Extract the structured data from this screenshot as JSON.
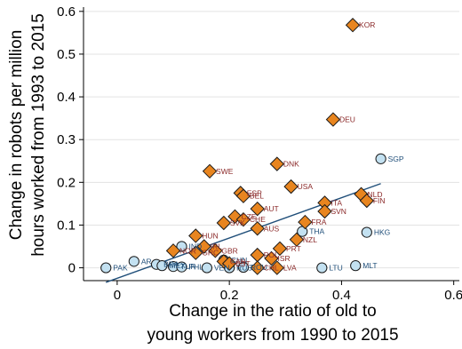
{
  "chart_data": {
    "type": "scatter",
    "xlabel": [
      "Change in the ratio of old to",
      "young workers from 1990 to 2015"
    ],
    "ylabel": [
      "Change in robots per million",
      "hours worked from 1993 to 2015"
    ],
    "xlim": [
      -0.06,
      0.61
    ],
    "ylim": [
      -0.03,
      0.61
    ],
    "xticks": [
      0,
      0.2,
      0.4,
      0.6
    ],
    "xtick_labels": [
      "0",
      "0.2",
      "0.4",
      "0.6"
    ],
    "yticks": [
      0,
      0.1,
      0.2,
      0.3,
      0.4,
      0.5,
      0.6
    ],
    "ytick_labels": [
      "0",
      "0.1",
      "0.2",
      "0.3",
      "0.4",
      "0.5",
      "0.6"
    ],
    "grid": "horizontal",
    "colors": {
      "diamond_fill": "#e8851f",
      "diamond_label": "#8b2a2a",
      "circle_fill": "#c3e1f1",
      "circle_label": "#1f4e79",
      "fit_line": "#1f4e79"
    },
    "fit_line": {
      "x": [
        -0.02,
        0.47
      ],
      "y": [
        -0.034,
        0.197
      ]
    },
    "series": [
      {
        "marker": "diamond",
        "points": [
          {
            "label": "KOR",
            "x": 0.42,
            "y": 0.568
          },
          {
            "label": "DEU",
            "x": 0.385,
            "y": 0.347
          },
          {
            "label": "DNK",
            "x": 0.285,
            "y": 0.243
          },
          {
            "label": "SWE",
            "x": 0.165,
            "y": 0.226
          },
          {
            "label": "USA",
            "x": 0.31,
            "y": 0.19
          },
          {
            "label": "ESP",
            "x": 0.22,
            "y": 0.175
          },
          {
            "label": "BEL",
            "x": 0.225,
            "y": 0.168
          },
          {
            "label": "NLD",
            "x": 0.435,
            "y": 0.172
          },
          {
            "label": "FIN",
            "x": 0.445,
            "y": 0.157
          },
          {
            "label": "ITA",
            "x": 0.37,
            "y": 0.152
          },
          {
            "label": "AUT",
            "x": 0.25,
            "y": 0.138
          },
          {
            "label": "SVN",
            "x": 0.37,
            "y": 0.132
          },
          {
            "label": "CZE",
            "x": 0.21,
            "y": 0.12
          },
          {
            "label": "CHE",
            "x": 0.225,
            "y": 0.113
          },
          {
            "label": "FRA",
            "x": 0.335,
            "y": 0.107
          },
          {
            "label": "SVK",
            "x": 0.19,
            "y": 0.105
          },
          {
            "label": "AUS",
            "x": 0.25,
            "y": 0.092
          },
          {
            "label": "HUN",
            "x": 0.14,
            "y": 0.075
          },
          {
            "label": "NZL",
            "x": 0.32,
            "y": 0.066
          },
          {
            "label": "IRL",
            "x": 0.155,
            "y": 0.05
          },
          {
            "label": "PRT",
            "x": 0.29,
            "y": 0.045
          },
          {
            "label": "GBR",
            "x": 0.175,
            "y": 0.04
          },
          {
            "label": "NOR",
            "x": 0.1,
            "y": 0.04
          },
          {
            "label": "GRC",
            "x": 0.14,
            "y": 0.035
          },
          {
            "label": "POL",
            "x": 0.25,
            "y": 0.03
          },
          {
            "label": "ISR",
            "x": 0.275,
            "y": 0.022
          },
          {
            "label": "CAN",
            "x": 0.19,
            "y": 0.015
          },
          {
            "label": "EST",
            "x": 0.2,
            "y": 0.01
          },
          {
            "label": "LVA",
            "x": 0.285,
            "y": 0.0
          },
          {
            "label": "CHL",
            "x": 0.25,
            "y": 0.0
          }
        ]
      },
      {
        "marker": "circle",
        "points": [
          {
            "label": "SGP",
            "x": 0.47,
            "y": 0.255
          },
          {
            "label": "THA",
            "x": 0.33,
            "y": 0.085
          },
          {
            "label": "HKG",
            "x": 0.445,
            "y": 0.083
          },
          {
            "label": "IND",
            "x": 0.115,
            "y": 0.05
          },
          {
            "label": "CHN",
            "x": 0.19,
            "y": 0.018
          },
          {
            "label": "AR",
            "x": 0.03,
            "y": 0.015
          },
          {
            "label": "BRA",
            "x": 0.07,
            "y": 0.008
          },
          {
            "label": "MEX",
            "x": 0.08,
            "y": 0.005
          },
          {
            "label": "TUR",
            "x": 0.1,
            "y": 0.003
          },
          {
            "label": "PHL",
            "x": 0.115,
            "y": 0.002
          },
          {
            "label": "VEN",
            "x": 0.16,
            "y": 0.0
          },
          {
            "label": "RUS",
            "x": 0.2,
            "y": 0.0
          },
          {
            "label": "ROU",
            "x": 0.225,
            "y": 0.001
          },
          {
            "label": "PAK",
            "x": -0.02,
            "y": 0.0
          },
          {
            "label": "LTU",
            "x": 0.365,
            "y": 0.0
          },
          {
            "label": "MLT",
            "x": 0.425,
            "y": 0.005
          }
        ]
      }
    ]
  }
}
